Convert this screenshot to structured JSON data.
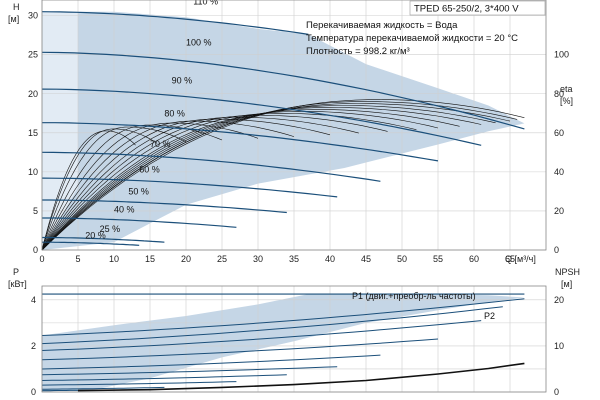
{
  "title": "TPED 65-250/2, 3*400 V",
  "info_lines": [
    "Перекачиваемая жидкость = Вода",
    "Температура перекачиваемой жидкости = 20 °C",
    "Плотность = 998.2 кг/м³"
  ],
  "colors": {
    "envelope": "#c5d6e6",
    "envelope_light": "#e2ebf4",
    "pq_curve": "#1b4f7a",
    "eta_curve": "#111111",
    "npsh_curve": "#111111"
  },
  "chart_data": [
    {
      "id": "head",
      "type": "line",
      "ylabel_left": "H",
      "ylabel_left_unit": "[м]",
      "ylabel_right": "eta",
      "ylabel_right_unit": "[%]",
      "xlabel": "Q [м³/ч]",
      "xlim": [
        0,
        70
      ],
      "ylim": [
        0,
        32
      ],
      "y2lim": [
        0,
        128
      ],
      "xticks": [
        0,
        5,
        10,
        15,
        20,
        25,
        30,
        35,
        40,
        45,
        50,
        55,
        60,
        65
      ],
      "yticks": [
        0,
        5,
        10,
        15,
        20,
        25,
        30
      ],
      "y2ticks": [
        0,
        20,
        40,
        60,
        80,
        100
      ],
      "envelope": [
        [
          0,
          0
        ],
        [
          0,
          30.5
        ],
        [
          10,
          30.5
        ],
        [
          20,
          29.8
        ],
        [
          30,
          28.3
        ],
        [
          37,
          27.6
        ],
        [
          45,
          23.8
        ],
        [
          55,
          20.7
        ],
        [
          62,
          18.5
        ],
        [
          67,
          16.2
        ],
        [
          62,
          15.2
        ],
        [
          55,
          13.5
        ],
        [
          45,
          11.2
        ],
        [
          42,
          10.5
        ],
        [
          30,
          8.5
        ],
        [
          20,
          5.8
        ],
        [
          15,
          3.4
        ],
        [
          10,
          1.0
        ],
        [
          0,
          0
        ]
      ],
      "series": [
        {
          "name": "110 %",
          "q_max": 37.0,
          "h0": 30.5,
          "h_end": 27.6,
          "label_q": 21,
          "label_h": 31.4
        },
        {
          "name": "100 %",
          "q_max": 67.0,
          "h0": 25.3,
          "h_end": 15.5,
          "label_q": 20,
          "label_h": 26.2
        },
        {
          "name": "90 %",
          "q_max": 61.0,
          "h0": 20.6,
          "h_end": 13.4,
          "label_q": 18,
          "label_h": 21.3
        },
        {
          "name": "80 %",
          "q_max": 55.0,
          "h0": 16.3,
          "h_end": 11.4,
          "label_q": 17,
          "label_h": 17.1
        },
        {
          "name": "70 %",
          "q_max": 47.0,
          "h0": 12.5,
          "h_end": 8.8,
          "label_q": 15,
          "label_h": 13.2
        },
        {
          "name": "60 %",
          "q_max": 41.0,
          "h0": 9.2,
          "h_end": 6.8,
          "label_q": 13.5,
          "label_h": 9.9
        },
        {
          "name": "50 %",
          "q_max": 34.0,
          "h0": 6.4,
          "h_end": 4.8,
          "label_q": 12,
          "label_h": 7.1
        },
        {
          "name": "40 %",
          "q_max": 27.0,
          "h0": 4.1,
          "h_end": 2.9,
          "label_q": 10,
          "label_h": 4.8
        },
        {
          "name": "25 %",
          "q_max": 17.0,
          "h0": 1.6,
          "h_end": 1.0,
          "label_q": 8,
          "label_h": 2.3
        },
        {
          "name": "20 %",
          "q_max": 13.5,
          "h0": 1.0,
          "h_end": 0.6,
          "label_q": 6,
          "label_h": 1.5
        }
      ],
      "eta_curves": [
        {
          "q_max": 67,
          "peak_q": 47,
          "peak_eta": 77
        },
        {
          "q_max": 66,
          "peak_q": 45,
          "peak_eta": 76
        },
        {
          "q_max": 65,
          "peak_q": 44,
          "peak_eta": 75
        },
        {
          "q_max": 63,
          "peak_q": 42,
          "peak_eta": 74
        },
        {
          "q_max": 61,
          "peak_q": 40,
          "peak_eta": 73
        },
        {
          "q_max": 58,
          "peak_q": 38,
          "peak_eta": 72
        },
        {
          "q_max": 55,
          "peak_q": 36,
          "peak_eta": 71
        },
        {
          "q_max": 52,
          "peak_q": 33,
          "peak_eta": 70
        },
        {
          "q_max": 48,
          "peak_q": 30,
          "peak_eta": 69
        },
        {
          "q_max": 44,
          "peak_q": 27,
          "peak_eta": 68
        },
        {
          "q_max": 40,
          "peak_q": 24,
          "peak_eta": 67
        },
        {
          "q_max": 35,
          "peak_q": 21,
          "peak_eta": 66
        },
        {
          "q_max": 30,
          "peak_q": 18,
          "peak_eta": 65
        },
        {
          "q_max": 25,
          "peak_q": 15,
          "peak_eta": 64
        },
        {
          "q_max": 20,
          "peak_q": 12,
          "peak_eta": 63
        },
        {
          "q_max": 16,
          "peak_q": 10,
          "peak_eta": 62
        },
        {
          "q_max": 13,
          "peak_q": 9,
          "peak_eta": 61
        }
      ]
    },
    {
      "id": "power",
      "type": "line",
      "ylabel_left": "P",
      "ylabel_left_unit": "[кВт]",
      "ylabel_right": "NPSH",
      "ylabel_right_unit": "[м]",
      "xlim": [
        0,
        70
      ],
      "ylim": [
        0,
        4.6
      ],
      "y2lim": [
        0,
        23
      ],
      "yticks": [
        0,
        2,
        4
      ],
      "y2ticks": [
        0,
        10,
        20
      ],
      "envelope": [
        [
          0,
          0
        ],
        [
          0,
          2.45
        ],
        [
          10,
          2.9
        ],
        [
          20,
          3.3
        ],
        [
          30,
          3.8
        ],
        [
          37,
          4.25
        ],
        [
          45,
          4.25
        ],
        [
          55,
          4.25
        ],
        [
          62,
          4.2
        ],
        [
          67,
          4.1
        ],
        [
          62,
          3.9
        ],
        [
          55,
          3.55
        ],
        [
          45,
          3.0
        ],
        [
          35,
          2.2
        ],
        [
          25,
          1.5
        ],
        [
          15,
          0.6
        ],
        [
          8,
          0.15
        ],
        [
          0,
          0
        ]
      ],
      "p1_label": "P1 (двиг.+преобр-ль частоты)",
      "p2_label": "P2",
      "power_curves": [
        {
          "q_max": 67,
          "p0": 4.25,
          "p_end": 4.25
        },
        {
          "q_max": 67,
          "p0": 2.45,
          "p_end": 4.05
        },
        {
          "q_max": 64,
          "p0": 2.1,
          "p_end": 3.7
        },
        {
          "q_max": 61,
          "p0": 1.8,
          "p_end": 3.1
        },
        {
          "q_max": 55,
          "p0": 1.4,
          "p_end": 2.3
        },
        {
          "q_max": 47,
          "p0": 1.0,
          "p_end": 1.6
        },
        {
          "q_max": 41,
          "p0": 0.75,
          "p_end": 1.1
        },
        {
          "q_max": 34,
          "p0": 0.5,
          "p_end": 0.75
        },
        {
          "q_max": 27,
          "p0": 0.3,
          "p_end": 0.45
        },
        {
          "q_max": 17,
          "p0": 0.12,
          "p_end": 0.2
        },
        {
          "q_max": 13.5,
          "p0": 0.06,
          "p_end": 0.1
        }
      ],
      "npsh_curve": {
        "x": [
          5,
          15,
          25,
          35,
          45,
          55,
          62,
          67
        ],
        "y": [
          0.3,
          0.5,
          1.0,
          1.6,
          2.5,
          3.9,
          5.1,
          6.2
        ]
      }
    }
  ]
}
